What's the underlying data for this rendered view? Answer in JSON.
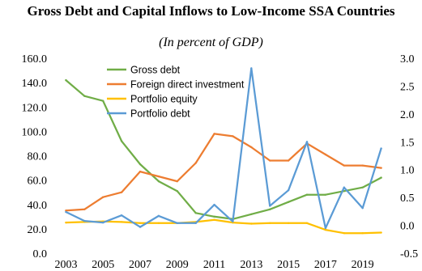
{
  "chart_data": {
    "type": "line",
    "title": "Gross Debt and Capital Inflows to Low-Income SSA Countries",
    "subtitle": "(In percent of GDP)",
    "x": [
      2003,
      2004,
      2005,
      2006,
      2007,
      2008,
      2009,
      2010,
      2011,
      2012,
      2013,
      2014,
      2015,
      2016,
      2017,
      2018,
      2019,
      2020
    ],
    "x_tick_labels": [
      "2003",
      "2005",
      "2007",
      "2009",
      "2011",
      "2013",
      "2015",
      "2017",
      "2019"
    ],
    "y_left": {
      "lim": [
        0,
        160
      ],
      "ticks": [
        "0.0",
        "20.0",
        "40.0",
        "60.0",
        "80.0",
        "100.0",
        "120.0",
        "140.0",
        "160.0"
      ]
    },
    "y_right": {
      "lim": [
        -0.5,
        3.0
      ],
      "ticks": [
        "-0.5",
        "0.0",
        "0.5",
        "1.0",
        "1.5",
        "2.0",
        "2.5",
        "3.0"
      ]
    },
    "grid": false,
    "legend_position": "top-left",
    "series": [
      {
        "name": "Gross debt",
        "axis": "left",
        "color": "#70AD47",
        "values": [
          142,
          129,
          125,
          92,
          73,
          59,
          51,
          33,
          30,
          28,
          32,
          36,
          42,
          48,
          48,
          51,
          54,
          62
        ]
      },
      {
        "name": "Foreign direct investment",
        "axis": "left",
        "color": "#ED7D31",
        "values": [
          35,
          36,
          46,
          50,
          67,
          63,
          59,
          74,
          98,
          96,
          87,
          76,
          76,
          90,
          81,
          72,
          72,
          70
        ]
      },
      {
        "name": "Portfolio equity",
        "axis": "right",
        "color": "#FFC000",
        "values": [
          0.05,
          0.06,
          0.07,
          0.06,
          0.04,
          0.04,
          0.04,
          0.06,
          0.1,
          0.05,
          0.03,
          0.04,
          0.04,
          0.04,
          -0.08,
          -0.14,
          -0.14,
          -0.13
        ]
      },
      {
        "name": "Portfolio debt",
        "axis": "right",
        "color": "#5B9BD5",
        "values": [
          0.24,
          0.08,
          0.05,
          0.18,
          -0.03,
          0.17,
          0.04,
          0.04,
          0.37,
          0.07,
          2.82,
          0.35,
          0.63,
          1.5,
          -0.05,
          0.68,
          0.31,
          1.38
        ]
      }
    ]
  }
}
